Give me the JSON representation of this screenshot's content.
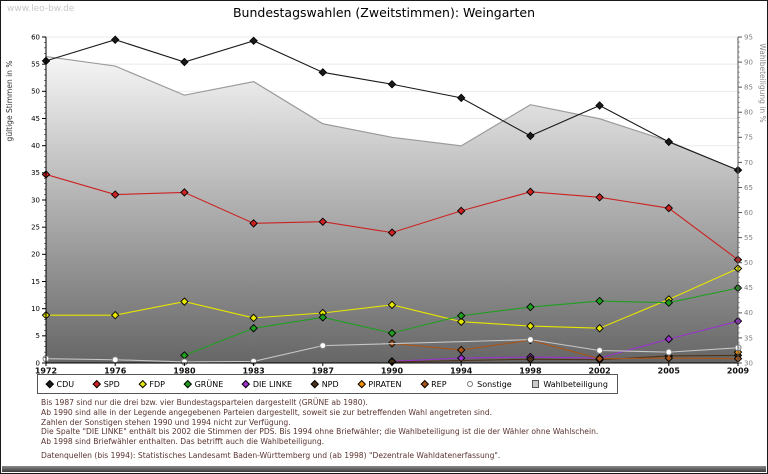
{
  "page": {
    "watermark": "www.leo-bw.de",
    "title": "Bundestagswahlen (Zweitstimmen): Weingarten",
    "footnotes": [
      "Bis 1987 sind nur die drei bzw. vier Bundestagsparteien dargestellt (GRÜNE ab 1980).",
      "Ab 1990 sind alle in der Legende angegebenen Parteien dargestellt, soweit sie zur betreffenden Wahl angetreten sind.",
      "Zahlen der Sonstigen stehen 1990 und 1994 nicht zur Verfügung.",
      "Die Spalte \"DIE LINKE\" enthält bis 2002 die Stimmen der PDS. Bis 1994 ohne Briefwähler; die Wahlbeteiligung ist die der Wähler ohne Wahlschein.",
      "Ab 1998 sind Briefwähler enthalten. Das betrifft auch die Wahlbeteiligung."
    ],
    "datasources": "Datenquellen (bis 1994): Statistisches Landesamt Baden-Württemberg und (ab 1998) \"Dezentrale Wahldatenerfassung\"."
  },
  "chart_data": {
    "type": "line",
    "title": "Bundestagswahlen (Zweitstimmen): Weingarten",
    "x_categories": [
      "1972",
      "1976",
      "1980",
      "1983",
      "1987",
      "1990",
      "1994",
      "1998",
      "2002",
      "2005",
      "2009"
    ],
    "left_axis": {
      "label": "gültige Stimmen in %",
      "min": 0,
      "max": 60,
      "step": 5
    },
    "right_axis": {
      "label": "Wahlbeteiligung in %",
      "min": 30,
      "max": 95,
      "step": 5
    },
    "grid": true,
    "legend_position": "bottom",
    "series": [
      {
        "name": "CDU",
        "axis": "left",
        "marker": "diamond",
        "color": "#1a1a1a",
        "values": [
          55.6,
          59.5,
          55.4,
          59.3,
          53.5,
          51.3,
          48.8,
          41.8,
          47.4,
          40.7,
          35.5
        ]
      },
      {
        "name": "SPD",
        "axis": "left",
        "marker": "diamond",
        "color": "#cc2222",
        "values": [
          34.7,
          31.0,
          31.4,
          25.7,
          26.0,
          24.0,
          28.0,
          31.5,
          30.5,
          28.5,
          19.0
        ]
      },
      {
        "name": "FDP",
        "axis": "left",
        "marker": "diamond",
        "color": "#e6e600",
        "values": [
          8.8,
          8.8,
          11.3,
          8.3,
          9.2,
          10.7,
          7.6,
          6.8,
          6.4,
          11.7,
          17.4
        ]
      },
      {
        "name": "GRÜNE",
        "axis": "left",
        "marker": "diamond",
        "color": "#1f9e1f",
        "values": [
          null,
          null,
          1.4,
          6.4,
          8.4,
          5.5,
          8.7,
          10.3,
          11.4,
          11.1,
          13.8
        ]
      },
      {
        "name": "DIE LINKE",
        "axis": "left",
        "marker": "diamond",
        "color": "#9933cc",
        "values": [
          null,
          null,
          null,
          null,
          null,
          0.3,
          0.9,
          1.1,
          0.9,
          4.4,
          7.7
        ]
      },
      {
        "name": "NPD",
        "axis": "left",
        "marker": "diamond",
        "color": "#4d3318",
        "values": [
          null,
          null,
          null,
          null,
          null,
          0.2,
          null,
          0.7,
          0.6,
          1.3,
          1.4
        ]
      },
      {
        "name": "PIRATEN",
        "axis": "left",
        "marker": "diamond",
        "color": "#f09000",
        "values": [
          null,
          null,
          null,
          null,
          null,
          null,
          null,
          null,
          null,
          null,
          2.0
        ]
      },
      {
        "name": "REP",
        "axis": "left",
        "marker": "diamond",
        "color": "#a85418",
        "values": [
          null,
          null,
          null,
          null,
          null,
          3.6,
          2.4,
          4.2,
          0.8,
          0.9,
          0.8
        ]
      },
      {
        "name": "Sonstige",
        "axis": "left",
        "marker": "circle",
        "color": "#c8c8c8",
        "values": [
          0.8,
          0.6,
          0.2,
          0.3,
          3.2,
          null,
          null,
          4.3,
          2.3,
          2.0,
          2.8
        ]
      },
      {
        "name": "Wahlbeteiligung",
        "axis": "right",
        "type": "area",
        "marker": "square",
        "color": "#9c9c9c",
        "fill_gradient": [
          "#ffffff",
          "#666666"
        ],
        "values": [
          91.1,
          89.2,
          83.4,
          86.1,
          77.7,
          75.0,
          73.3,
          81.5,
          78.7,
          74.2,
          68.4
        ]
      }
    ]
  }
}
